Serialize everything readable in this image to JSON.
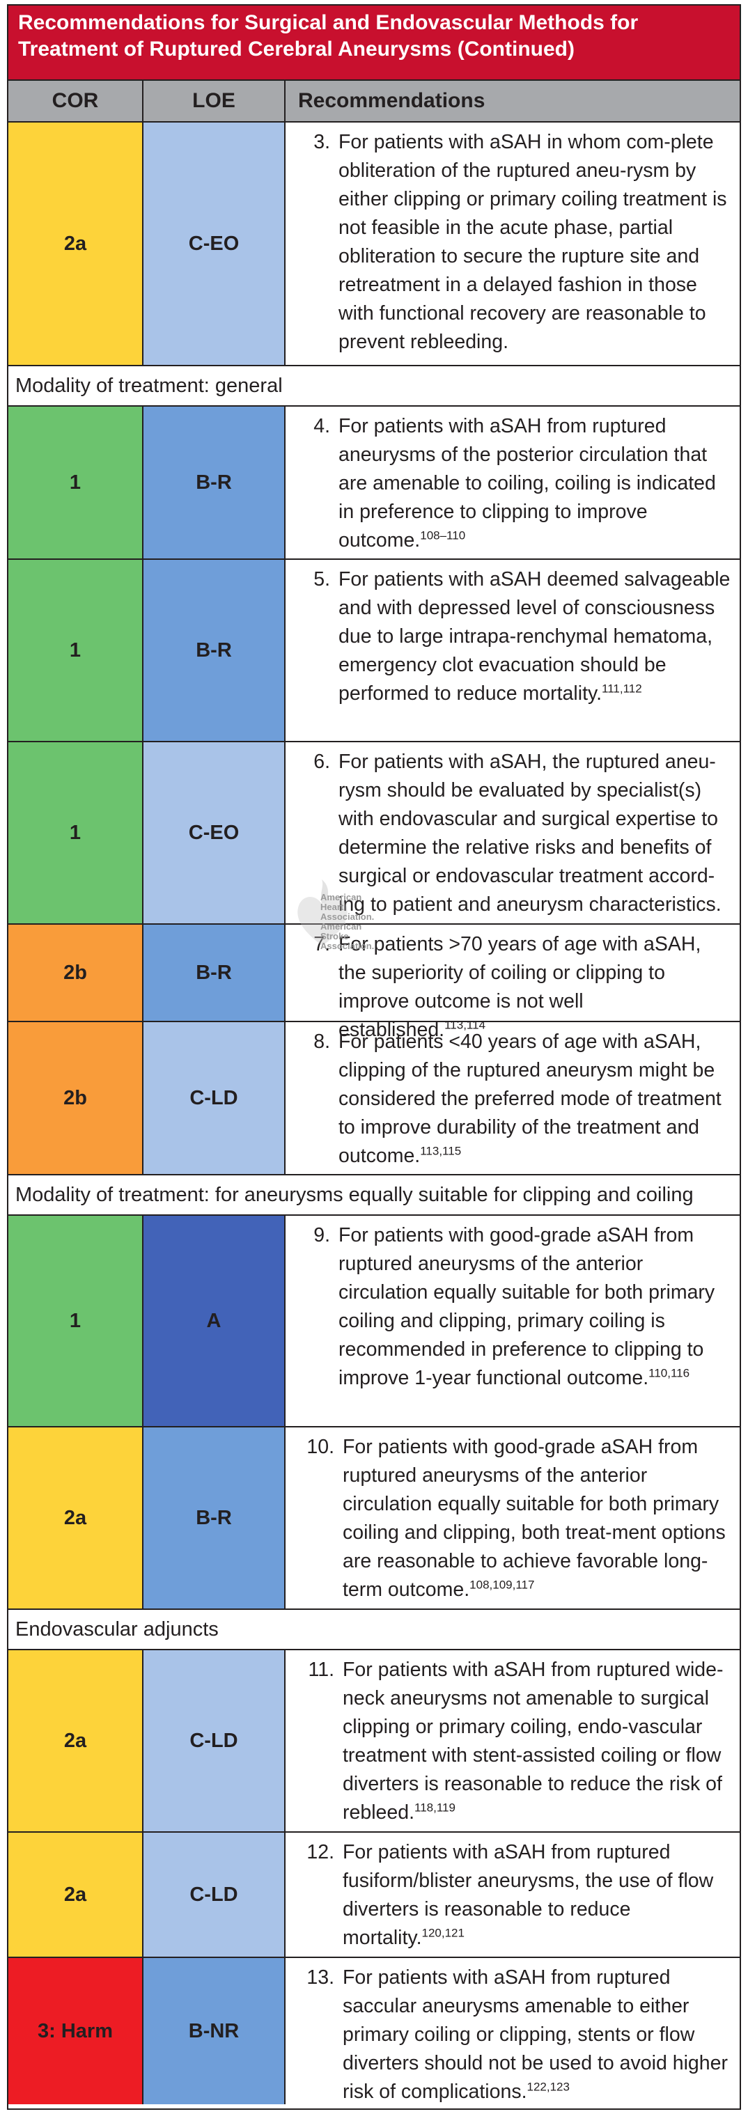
{
  "title": "Recommendations for Surgical and Endovascular Methods for Treatment of Ruptured Cerebral Aneurysms (Continued)",
  "header": {
    "cor": "COR",
    "loe": "LOE",
    "rec": "Recommendations"
  },
  "watermark": {
    "text": "American Heart Association. American Stroke Association.",
    "icon": "heart-torch-logo"
  },
  "colors": {
    "title_bg": "#c8102e",
    "header_bg": "#a7a9ac",
    "cor_1": "#6cc36e",
    "cor_2a": "#fdd33a",
    "cor_2b": "#f99c3a",
    "cor_harm": "#ed1c24",
    "loe_a": "#4263b8",
    "loe_b": "#6f9ed9",
    "loe_c": "#a9c3e8"
  },
  "rows": [
    {
      "cor": "2a",
      "loe": "C-EO",
      "num": "3.",
      "text": "For patients with aSAH in whom com-plete obliteration of the ruptured aneu-rysm by either clipping or primary coiling treatment is not feasible in the acute phase, partial obliteration to secure the rupture site and retreatment in a delayed fashion in those with functional recovery are reasonable to prevent rebleeding.",
      "ref": ""
    },
    {
      "section": "Modality of treatment: general"
    },
    {
      "cor": "1",
      "loe": "B-R",
      "num": "4.",
      "text": "For patients with aSAH from ruptured aneurysms of the posterior circulation that are amenable to coiling, coiling is indicated in preference to clipping to improve outcome.",
      "ref": "108–110"
    },
    {
      "cor": "1",
      "loe": "B-R",
      "num": "5.",
      "text": "For patients with aSAH deemed salvageable and with depressed level of consciousness due to large intrapa-renchymal hematoma, emergency clot evacuation should be performed to reduce mortality.",
      "ref": "111,112"
    },
    {
      "cor": "1",
      "loe": "C-EO",
      "num": "6.",
      "text": "For patients with aSAH, the ruptured aneu-rysm should be evaluated by specialist(s) with endovascular and surgical expertise to determine the relative risks and benefits of surgical or endovascular treatment accord-ing to patient and aneurysm characteristics.",
      "ref": ""
    },
    {
      "cor": "2b",
      "loe": "B-R",
      "num": "7.",
      "text": "For patients >70 years of age with aSAH, the superiority of coiling or clipping to improve outcome is not well established.",
      "ref": "113,114"
    },
    {
      "cor": "2b",
      "loe": "C-LD",
      "num": "8.",
      "text": "For patients <40 years of age with aSAH, clipping of the ruptured aneurysm might be considered the preferred mode of treatment to improve durability of the treatment and outcome.",
      "ref": "113,115"
    },
    {
      "section": "Modality of treatment: for aneurysms equally suitable for clipping and coiling"
    },
    {
      "cor": "1",
      "loe": "A",
      "num": "9.",
      "text": "For patients with good-grade aSAH from ruptured aneurysms of the anterior circulation equally suitable for both primary coiling and clipping, primary coiling is recommended in preference to clipping to improve 1-year functional outcome.",
      "ref": "110,116"
    },
    {
      "cor": "2a",
      "loe": "B-R",
      "num": "10.",
      "text": "For patients with good-grade aSAH from ruptured aneurysms of the anterior circulation equally suitable for both primary coiling and clipping, both treat-ment options are reasonable to achieve favorable long-term outcome.",
      "ref": "108,109,117"
    },
    {
      "section": "Endovascular adjuncts"
    },
    {
      "cor": "2a",
      "loe": "C-LD",
      "num": "11.",
      "text": "For patients with aSAH from ruptured wide-neck aneurysms not amenable to surgical clipping or primary coiling, endo-vascular treatment with stent-assisted coiling or flow diverters is reasonable to reduce the risk of rebleed.",
      "ref": "118,119"
    },
    {
      "cor": "2a",
      "loe": "C-LD",
      "num": "12.",
      "text": "For patients with aSAH from ruptured fusiform/blister aneurysms, the use of flow diverters is reasonable to reduce mortality.",
      "ref": "120,121"
    },
    {
      "cor": "3: Harm",
      "loe": "B-NR",
      "num": "13.",
      "text": "For patients with aSAH from ruptured saccular aneurysms amenable to either primary coiling or clipping, stents or flow diverters should not be used to avoid higher risk of complications.",
      "ref": "122,123"
    }
  ]
}
